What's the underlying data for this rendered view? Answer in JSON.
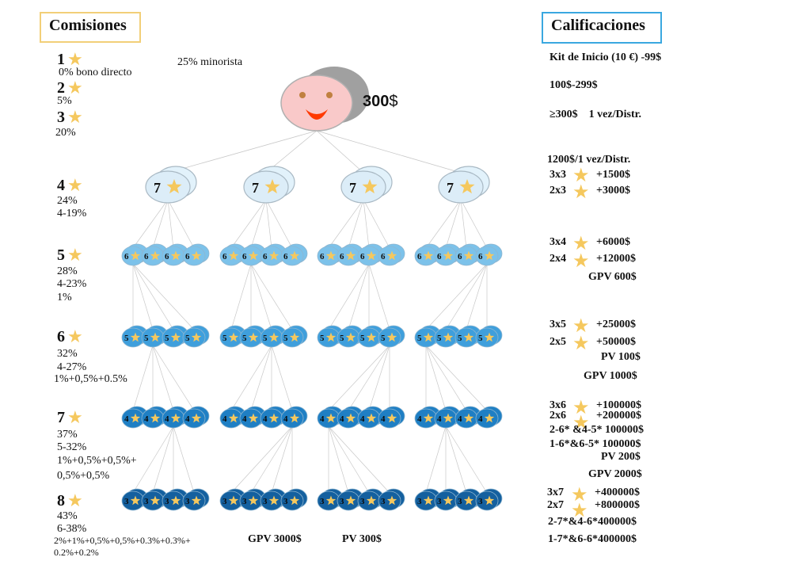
{
  "left": {
    "title": "Comisiones",
    "retail": "25% minorista",
    "levels": [
      {
        "num": "1",
        "lines": [
          "0% bono directo"
        ]
      },
      {
        "num": "2",
        "lines": [
          "5%"
        ]
      },
      {
        "num": "3",
        "lines": [
          "20%"
        ]
      },
      {
        "num": "4",
        "lines": [
          "24%",
          "4-19%"
        ]
      },
      {
        "num": "5",
        "lines": [
          "28%",
          "4-23%",
          "1%"
        ]
      },
      {
        "num": "6",
        "lines": [
          "32%",
          "4-27%",
          "1%+0,5%+0.5%"
        ]
      },
      {
        "num": "7",
        "lines": [
          "37%",
          "5-32%",
          "1%+0,5%+0,5%+",
          "0,5%+0,5%"
        ]
      },
      {
        "num": "8",
        "lines": [
          "43%",
          "6-38%",
          "2%+1%+0,5%+0,5%+0.3%+0.3%+",
          "0.2%+0.2%"
        ]
      }
    ]
  },
  "tree": {
    "top_value": "300",
    "top_unit": "$",
    "level2_label": "7",
    "rows": [
      "6",
      "5",
      "4",
      "3"
    ],
    "row_colors": [
      "#7cc2ea",
      "#3f9fdc",
      "#1f7fc4",
      "#14609f"
    ],
    "footer_gpv": "GPV 3000$",
    "footer_pv": "PV 300$"
  },
  "right": {
    "title": "Calificaciones",
    "kit": "Kit de Inicio (10 €) -99$",
    "r1": "100$-299$",
    "r2": "≥300$    1 vez/Distr.",
    "r3": "1200$/1 vez/Distr.",
    "g4a_l": "3x3",
    "g4a_r": "+1500$",
    "g4b_l": "2x3",
    "g4b_r": "+3000$",
    "g5a_l": "3x4",
    "g5a_r": "+6000$",
    "g5b_l": "2x4",
    "g5b_r": "+12000$",
    "g5_gpv": "GPV 600$",
    "g6a_l": "3x5",
    "g6a_r": "+25000$",
    "g6b_l": "2x5",
    "g6b_r": "+50000$",
    "g6_pv": "PV 100$",
    "g6_gpv": "GPV 1000$",
    "g7a_l": "3x6",
    "g7a_r": "+100000$",
    "g7b_l": "2x6",
    "g7b_r": "+200000$",
    "g7c": "2-6* &4-5* 100000$",
    "g7d": "1-6*&6-5* 100000$",
    "g7_pv": "PV 200$",
    "g7_gpv": "GPV 2000$",
    "g8a_l": "3x7",
    "g8a_r": "+400000$",
    "g8b_l": "2x7",
    "g8b_r": "+800000$",
    "g8c": "2-7*&4-6*400000$",
    "g8d": "1-7*&6-6*400000$"
  },
  "colors": {
    "left_box": "#f2cf78",
    "right_box": "#3aa8e0",
    "star": "#f5c85e",
    "face": "#f9c9c9",
    "mouth": "#ff3a00"
  }
}
